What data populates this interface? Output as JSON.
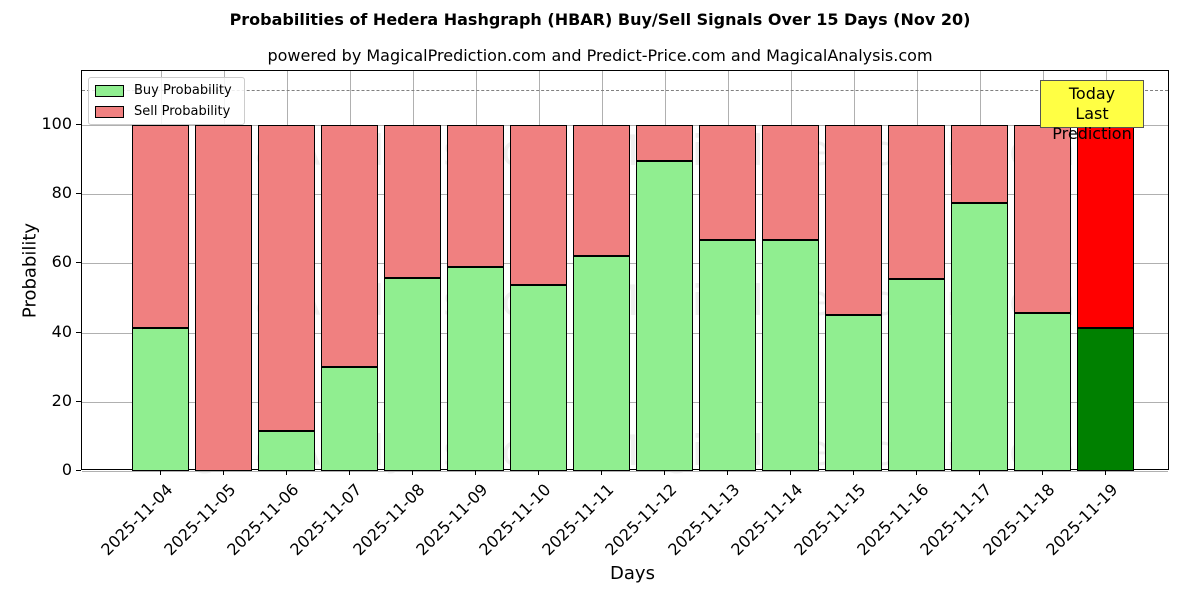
{
  "chart_data": {
    "type": "bar",
    "stacked": true,
    "title": "Probabilities of Hedera Hashgraph (HBAR) Buy/Sell Signals Over 15 Days (Nov 20)",
    "subtitle": "powered by MagicalPrediction.com and Predict-Price.com and MagicalAnalysis.com",
    "xlabel": "Days",
    "ylabel": "Probability",
    "ylim": [
      0,
      115
    ],
    "yticks": [
      0,
      20,
      40,
      60,
      80,
      100
    ],
    "grid": true,
    "reference_line": 110,
    "legend_position": "upper left",
    "categories": [
      "2025-11-04",
      "2025-11-05",
      "2025-11-06",
      "2025-11-07",
      "2025-11-08",
      "2025-11-09",
      "2025-11-10",
      "2025-11-11",
      "2025-11-12",
      "2025-11-13",
      "2025-11-14",
      "2025-11-15",
      "2025-11-16",
      "2025-11-17",
      "2025-11-18",
      "2025-11-19"
    ],
    "series": [
      {
        "name": "Buy Probability",
        "color": "#90ee90",
        "values": [
          41.3,
          0,
          11.7,
          30.2,
          55.8,
          59.0,
          53.9,
          62.0,
          89.5,
          66.8,
          66.8,
          45.0,
          55.6,
          77.6,
          45.8,
          41.3
        ]
      },
      {
        "name": "Sell Probability",
        "color": "#f08080",
        "values": [
          58.7,
          100,
          88.3,
          69.8,
          44.2,
          41.0,
          46.1,
          38.0,
          10.5,
          33.2,
          33.2,
          55.0,
          44.4,
          22.4,
          54.2,
          58.7
        ]
      }
    ],
    "highlight_last": {
      "buy_color": "#008000",
      "sell_color": "#ff0000"
    },
    "annotation": "Today\nLast Prediction",
    "watermarks": [
      "MagicalAnalysis.com",
      "MagicalPrediction.com"
    ]
  },
  "legend": {
    "buy": "Buy Probability",
    "sell": "Sell Probability"
  },
  "annotation": {
    "line1": "Today",
    "line2": "Last Prediction"
  }
}
